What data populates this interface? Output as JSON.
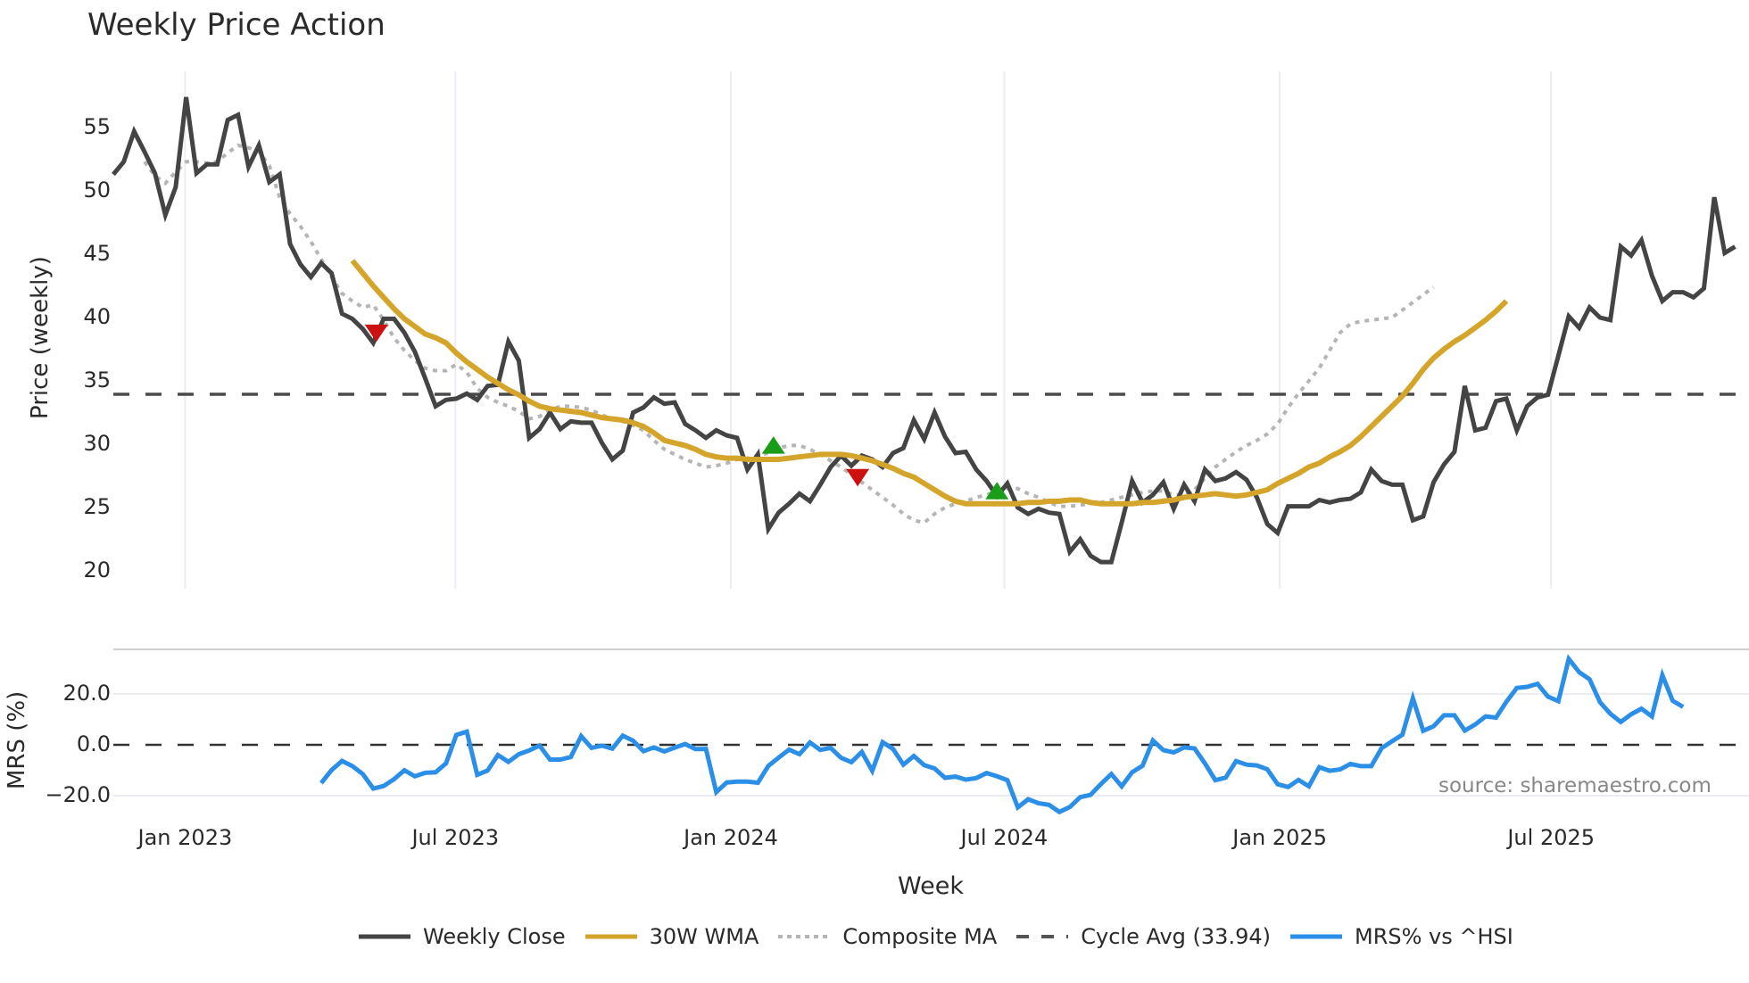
{
  "title": "Weekly Price Action",
  "source_label": "source: sharemaestro.com",
  "axes": {
    "price_ylabel": "Price (weekly)",
    "mrs_ylabel": "MRS (%)",
    "xlabel": "Week",
    "price_ticks": [
      "55",
      "50",
      "45",
      "40",
      "35",
      "30",
      "25",
      "20"
    ],
    "price_tick_values": [
      55,
      50,
      45,
      40,
      35,
      30,
      25,
      20
    ],
    "mrs_ticks": [
      "20.0",
      "0.0",
      "−20.0"
    ],
    "mrs_tick_values": [
      20,
      0,
      -20
    ],
    "x_ticks": [
      "Jan 2023",
      "Jul 2023",
      "Jan 2024",
      "Jul 2024",
      "Jan 2025",
      "Jul 2025"
    ],
    "x_tick_weeks": [
      6.9,
      32.9,
      59.4,
      85.7,
      112.2,
      138.3
    ]
  },
  "legend": [
    {
      "label": "Weekly Close",
      "color": "#444444",
      "style": "solid"
    },
    {
      "label": "30W WMA",
      "color": "#d4a52a",
      "style": "solid"
    },
    {
      "label": "Composite MA",
      "color": "#b5b5b5",
      "style": "dotted"
    },
    {
      "label": "Cycle Avg (33.94)",
      "color": "#555555",
      "style": "dashed"
    },
    {
      "label": "MRS% vs ^HSI",
      "color": "#2b8fe8",
      "style": "solid"
    }
  ],
  "colors": {
    "close": "#444444",
    "wma": "#d4a52a",
    "composite": "#b5b5b5",
    "cycle": "#4a4a4a",
    "mrs": "#2b8fe8",
    "buy_marker": "#1a9e1a",
    "sell_marker": "#cc1111",
    "grid": "#ececf2"
  },
  "chart_data": [
    {
      "type": "line",
      "title": "Weekly Price Action",
      "xlabel": "Week",
      "ylabel": "Price (weekly)",
      "ylim": [
        18.5,
        58.5
      ],
      "x_tick_labels": [
        "Jan 2023",
        "Jul 2023",
        "Jan 2024",
        "Jul 2024",
        "Jan 2025",
        "Jul 2025"
      ],
      "hline": {
        "name": "Cycle Avg (33.94)",
        "value": 33.94
      },
      "series": [
        {
          "name": "Weekly Close",
          "start_index": 0,
          "values": [
            51.3,
            52.3,
            54.7,
            53.1,
            51.4,
            48.1,
            50.3,
            57.4,
            51.4,
            52.1,
            52.1,
            55.6,
            56.0,
            51.9,
            53.6,
            50.7,
            51.3,
            45.8,
            44.2,
            43.2,
            44.3,
            43.5,
            40.3,
            39.9,
            39.1,
            38.0,
            39.9,
            39.9,
            38.8,
            37.3,
            35.2,
            33.0,
            33.5,
            33.6,
            34.0,
            33.5,
            34.6,
            34.7,
            38.1,
            36.6,
            30.5,
            31.2,
            32.5,
            31.2,
            31.8,
            31.7,
            31.7,
            30.1,
            28.8,
            29.5,
            32.5,
            32.9,
            33.7,
            33.2,
            33.3,
            31.6,
            31.1,
            30.5,
            31.1,
            30.7,
            30.5,
            28.0,
            29.2,
            23.3,
            24.6,
            25.3,
            26.1,
            25.5,
            26.8,
            28.2,
            29.1,
            28.3,
            29.1,
            28.8,
            28.2,
            29.3,
            29.7,
            31.9,
            30.4,
            32.5,
            30.6,
            29.3,
            29.4,
            28.0,
            27.1,
            25.9,
            26.9,
            25.0,
            24.5,
            24.9,
            24.6,
            24.5,
            21.5,
            22.5,
            21.2,
            20.7,
            20.7,
            23.8,
            27.1,
            25.4,
            26.0,
            27.0,
            24.9,
            26.8,
            25.5,
            28.0,
            27.1,
            27.3,
            27.8,
            27.2,
            25.8,
            23.7,
            23.0,
            25.1,
            25.1,
            25.1,
            25.6,
            25.4,
            25.6,
            25.7,
            26.2,
            28.0,
            27.1,
            26.8,
            26.8,
            24.0,
            24.3,
            27.0,
            28.4,
            29.4,
            34.6,
            31.1,
            31.3,
            33.4,
            33.6,
            31.1,
            33.0,
            33.7,
            33.9,
            37.0,
            40.1,
            39.2,
            40.8,
            40.0,
            39.8,
            45.6,
            44.9,
            46.1,
            43.3,
            41.3,
            42.0,
            42.0,
            41.6,
            42.3,
            49.5,
            45.1,
            45.6
          ]
        },
        {
          "name": "30W WMA",
          "start_index": 23,
          "values": [
            44.5,
            43.5,
            42.5,
            41.6,
            40.7,
            39.9,
            39.3,
            38.7,
            38.4,
            38.0,
            37.2,
            36.5,
            35.9,
            35.3,
            34.8,
            34.3,
            33.9,
            33.4,
            33.0,
            32.8,
            32.7,
            32.6,
            32.5,
            32.3,
            32.1,
            32.0,
            31.9,
            31.7,
            31.4,
            30.9,
            30.3,
            30.1,
            29.9,
            29.6,
            29.2,
            29.0,
            28.9,
            28.9,
            28.8,
            28.8,
            28.8,
            28.8,
            28.9,
            29.0,
            29.1,
            29.2,
            29.2,
            29.2,
            29.1,
            28.9,
            28.7,
            28.4,
            28.1,
            27.7,
            27.4,
            26.9,
            26.4,
            25.9,
            25.5,
            25.3,
            25.3,
            25.3,
            25.3,
            25.3,
            25.3,
            25.4,
            25.4,
            25.5,
            25.5,
            25.6,
            25.6,
            25.4,
            25.3,
            25.3,
            25.3,
            25.3,
            25.4,
            25.4,
            25.5,
            25.6,
            25.8,
            25.9,
            26.0,
            26.1,
            26.0,
            25.9,
            26.0,
            26.2,
            26.4,
            26.9,
            27.3,
            27.7,
            28.2,
            28.5,
            29.0,
            29.4,
            29.9,
            30.6,
            31.4,
            32.2,
            33.0,
            33.8,
            34.8,
            35.9,
            36.8,
            37.5,
            38.1,
            38.6,
            39.2,
            39.8,
            40.5,
            41.3
          ]
        },
        {
          "name": "Composite MA",
          "start_index": 3,
          "values": [
            52.3,
            51.2,
            50.6,
            51.5,
            52.3,
            52.3,
            52.2,
            52.3,
            53.0,
            53.6,
            53.4,
            53.1,
            52.0,
            49.5,
            48.2,
            47.2,
            46.0,
            44.6,
            43.2,
            41.9,
            41.3,
            40.8,
            41.0,
            39.8,
            38.4,
            37.4,
            36.6,
            36.0,
            35.8,
            35.8,
            36.3,
            35.7,
            34.4,
            33.7,
            33.3,
            33.0,
            32.6,
            32.0,
            32.2,
            32.7,
            33.0,
            33.0,
            32.9,
            32.7,
            32.3,
            32.0,
            31.8,
            31.5,
            31.1,
            30.3,
            29.6,
            29.2,
            28.8,
            28.5,
            28.2,
            28.3,
            28.5,
            28.8,
            28.9,
            29.1,
            29.3,
            29.7,
            29.9,
            29.9,
            29.6,
            29.2,
            28.7,
            28.2,
            27.6,
            27.0,
            26.4,
            25.8,
            25.2,
            24.5,
            24.0,
            23.8,
            24.5,
            25.0,
            25.3,
            25.5,
            25.8,
            26.0,
            26.3,
            26.5,
            26.5,
            26.1,
            25.8,
            25.4,
            25.1,
            25.1,
            25.2,
            25.3,
            25.4,
            25.6,
            25.8,
            26.0,
            26.2,
            26.3,
            26.3,
            26.0,
            26.0,
            26.4,
            27.3,
            28.2,
            28.8,
            29.4,
            29.9,
            30.3,
            30.8,
            31.6,
            32.9,
            34.0,
            35.0,
            36.0,
            37.4,
            38.8,
            39.5,
            39.7,
            39.8,
            39.9,
            40.0,
            40.6,
            41.2,
            41.8,
            42.4
          ]
        }
      ],
      "markers": [
        {
          "type": "sell",
          "index": 25.3,
          "value": 38.9
        },
        {
          "type": "buy",
          "index": 63.5,
          "value": 29.8
        },
        {
          "type": "sell",
          "index": 71.6,
          "value": 27.5
        },
        {
          "type": "buy",
          "index": 85.0,
          "value": 26.2
        }
      ]
    },
    {
      "type": "line",
      "ylabel": "MRS (%)",
      "ylim": [
        -27,
        35
      ],
      "hline": {
        "name": "zero",
        "value": 0
      },
      "series": [
        {
          "name": "MRS% vs ^HSI",
          "start_index": 20,
          "values": [
            -15.0,
            -9.9,
            -6.3,
            -8.4,
            -11.5,
            -17.2,
            -16.2,
            -13.5,
            -10.0,
            -12.4,
            -11.0,
            -10.8,
            -7.3,
            3.9,
            5.2,
            -11.8,
            -10.1,
            -4.0,
            -6.7,
            -3.7,
            -2.2,
            -0.3,
            -5.8,
            -5.8,
            -4.8,
            3.4,
            -1.2,
            -0.3,
            -1.5,
            3.6,
            1.6,
            -2.5,
            -1.0,
            -2.6,
            -1.1,
            0.3,
            -1.7,
            -1.6,
            -18.6,
            -14.8,
            -14.5,
            -14.5,
            -14.9,
            -8.3,
            -5.0,
            -1.9,
            -3.7,
            0.9,
            -2.0,
            -1.2,
            -5.1,
            -6.8,
            -2.8,
            -10.2,
            1.0,
            -1.6,
            -7.8,
            -4.4,
            -8.0,
            -9.3,
            -13.0,
            -12.5,
            -13.7,
            -13.1,
            -11.1,
            -12.4,
            -13.9,
            -24.6,
            -21.4,
            -23.0,
            -23.6,
            -26.4,
            -24.5,
            -20.6,
            -19.7,
            -15.4,
            -11.5,
            -16.3,
            -10.8,
            -8.2,
            1.7,
            -2.1,
            -3.0,
            -1.0,
            -1.4,
            -7.3,
            -13.9,
            -12.9,
            -6.4,
            -7.8,
            -8.1,
            -9.6,
            -15.5,
            -16.6,
            -13.8,
            -16.3,
            -8.8,
            -10.2,
            -9.7,
            -7.5,
            -8.4,
            -8.4,
            -1.3,
            1.4,
            4.0,
            18.3,
            5.5,
            7.3,
            11.6,
            11.6,
            5.6,
            8.0,
            11.2,
            10.7,
            16.9,
            22.4,
            22.8,
            24.0,
            19.0,
            17.2,
            33.8,
            28.6,
            25.8,
            16.8,
            12.2,
            9.0,
            12.0,
            14.2,
            11.2,
            27.4,
            17.3,
            14.9
          ]
        }
      ]
    }
  ]
}
